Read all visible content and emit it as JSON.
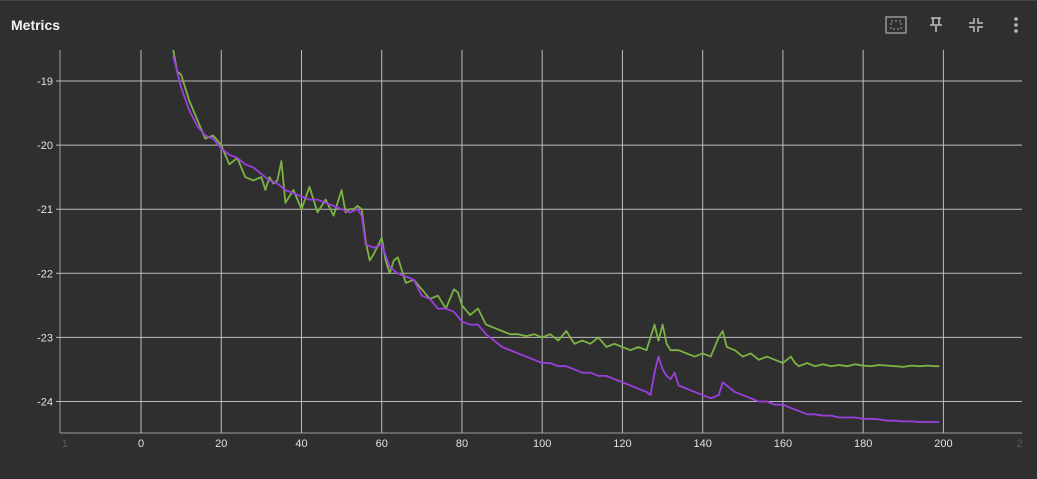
{
  "card": {
    "title": "Metrics"
  },
  "toolbar": {
    "fit_icon": "fit-domain-icon",
    "pin_icon": "pin-icon",
    "collapse_icon": "collapse-icon",
    "more_icon": "more-vert-icon"
  },
  "colors": {
    "background": "#2f2f2f",
    "grid": "#bdbdbd",
    "series_green": "#7cb342",
    "series_purple": "#9c3fe0"
  },
  "chart_data": {
    "type": "line",
    "title": "",
    "xlabel": "",
    "ylabel": "",
    "xlim": [
      -19,
      219
    ],
    "ylim": [
      -24.5,
      -18.5
    ],
    "x_ticks": [
      0,
      20,
      40,
      60,
      80,
      100,
      120,
      140,
      160,
      180,
      200
    ],
    "x_ticks_dim": [
      {
        "value": -19,
        "label": "1"
      },
      {
        "value": 219,
        "label": "2"
      }
    ],
    "y_ticks": [
      -19,
      -20,
      -21,
      -22,
      -23,
      -24
    ],
    "grid": true,
    "legend": "none",
    "series": [
      {
        "color": "#7cb342",
        "x": [
          8,
          9,
          10,
          12,
          14,
          16,
          18,
          20,
          22,
          24,
          26,
          28,
          30,
          31,
          32,
          33,
          34,
          35,
          36,
          37,
          38,
          40,
          42,
          44,
          46,
          48,
          50,
          51,
          52,
          53,
          54,
          55,
          56,
          57,
          58,
          60,
          61,
          62,
          63,
          64,
          65,
          66,
          68,
          70,
          72,
          74,
          76,
          78,
          79,
          80,
          82,
          84,
          86,
          88,
          90,
          92,
          94,
          96,
          98,
          100,
          102,
          104,
          106,
          108,
          110,
          112,
          114,
          116,
          118,
          120,
          122,
          124,
          126,
          128,
          129,
          130,
          131,
          132,
          134,
          136,
          138,
          140,
          142,
          144,
          145,
          146,
          148,
          150,
          152,
          154,
          156,
          158,
          160,
          162,
          163,
          164,
          166,
          168,
          170,
          172,
          174,
          176,
          178,
          180,
          182,
          184,
          186,
          188,
          190,
          192,
          194,
          196,
          198,
          199
        ],
        "y": [
          -18.5,
          -18.85,
          -18.9,
          -19.3,
          -19.6,
          -19.9,
          -19.85,
          -20.0,
          -20.3,
          -20.2,
          -20.5,
          -20.55,
          -20.5,
          -20.7,
          -20.5,
          -20.6,
          -20.55,
          -20.25,
          -20.9,
          -20.8,
          -20.7,
          -21.0,
          -20.65,
          -21.05,
          -20.85,
          -21.1,
          -20.7,
          -21.05,
          -21.0,
          -21.0,
          -20.95,
          -21.0,
          -21.5,
          -21.8,
          -21.7,
          -21.45,
          -21.8,
          -22.0,
          -21.8,
          -21.75,
          -21.95,
          -22.15,
          -22.1,
          -22.25,
          -22.4,
          -22.35,
          -22.55,
          -22.25,
          -22.3,
          -22.5,
          -22.65,
          -22.55,
          -22.8,
          -22.85,
          -22.9,
          -22.95,
          -22.95,
          -22.98,
          -22.95,
          -23.0,
          -22.95,
          -23.05,
          -22.9,
          -23.1,
          -23.05,
          -23.1,
          -23.0,
          -23.15,
          -23.1,
          -23.15,
          -23.2,
          -23.15,
          -23.2,
          -22.8,
          -23.05,
          -22.8,
          -23.1,
          -23.2,
          -23.2,
          -23.25,
          -23.3,
          -23.25,
          -23.3,
          -23.0,
          -22.9,
          -23.15,
          -23.2,
          -23.3,
          -23.25,
          -23.35,
          -23.3,
          -23.35,
          -23.4,
          -23.3,
          -23.4,
          -23.45,
          -23.4,
          -23.45,
          -23.42,
          -23.45,
          -23.43,
          -23.45,
          -23.42,
          -23.44,
          -23.45,
          -23.43,
          -23.44,
          -23.45,
          -23.46,
          -23.44,
          -23.45,
          -23.44,
          -23.45,
          -23.45
        ]
      },
      {
        "color": "#9c3fe0",
        "x": [
          8,
          10,
          12,
          14,
          16,
          18,
          20,
          22,
          24,
          26,
          28,
          30,
          32,
          34,
          36,
          38,
          40,
          42,
          44,
          46,
          48,
          50,
          52,
          54,
          55,
          56,
          58,
          60,
          62,
          64,
          66,
          68,
          70,
          72,
          74,
          76,
          78,
          80,
          82,
          84,
          86,
          88,
          90,
          92,
          94,
          96,
          98,
          100,
          102,
          104,
          106,
          108,
          110,
          112,
          114,
          116,
          118,
          120,
          122,
          124,
          126,
          127,
          128,
          129,
          130,
          131,
          132,
          133,
          134,
          136,
          138,
          140,
          142,
          144,
          145,
          146,
          148,
          150,
          152,
          154,
          156,
          158,
          160,
          162,
          164,
          166,
          168,
          170,
          172,
          174,
          176,
          178,
          180,
          182,
          184,
          186,
          188,
          190,
          192,
          194,
          196,
          198,
          199
        ],
        "y": [
          -18.6,
          -19.1,
          -19.45,
          -19.7,
          -19.85,
          -19.9,
          -20.05,
          -20.15,
          -20.2,
          -20.3,
          -20.35,
          -20.45,
          -20.55,
          -20.6,
          -20.7,
          -20.75,
          -20.8,
          -20.85,
          -20.85,
          -20.9,
          -20.95,
          -21.0,
          -21.05,
          -21.0,
          -21.1,
          -21.55,
          -21.6,
          -21.55,
          -21.9,
          -22.0,
          -22.05,
          -22.1,
          -22.35,
          -22.4,
          -22.55,
          -22.55,
          -22.6,
          -22.75,
          -22.8,
          -22.8,
          -22.95,
          -23.05,
          -23.15,
          -23.2,
          -23.25,
          -23.3,
          -23.35,
          -23.4,
          -23.4,
          -23.45,
          -23.45,
          -23.5,
          -23.55,
          -23.55,
          -23.6,
          -23.6,
          -23.65,
          -23.7,
          -23.75,
          -23.8,
          -23.85,
          -23.9,
          -23.55,
          -23.3,
          -23.5,
          -23.6,
          -23.65,
          -23.55,
          -23.75,
          -23.8,
          -23.85,
          -23.9,
          -23.95,
          -23.9,
          -23.7,
          -23.75,
          -23.85,
          -23.9,
          -23.95,
          -24.0,
          -24.0,
          -24.05,
          -24.05,
          -24.1,
          -24.15,
          -24.2,
          -24.2,
          -24.22,
          -24.22,
          -24.25,
          -24.25,
          -24.25,
          -24.27,
          -24.27,
          -24.28,
          -24.3,
          -24.3,
          -24.31,
          -24.31,
          -24.32,
          -24.32,
          -24.32,
          -24.32
        ]
      }
    ]
  }
}
